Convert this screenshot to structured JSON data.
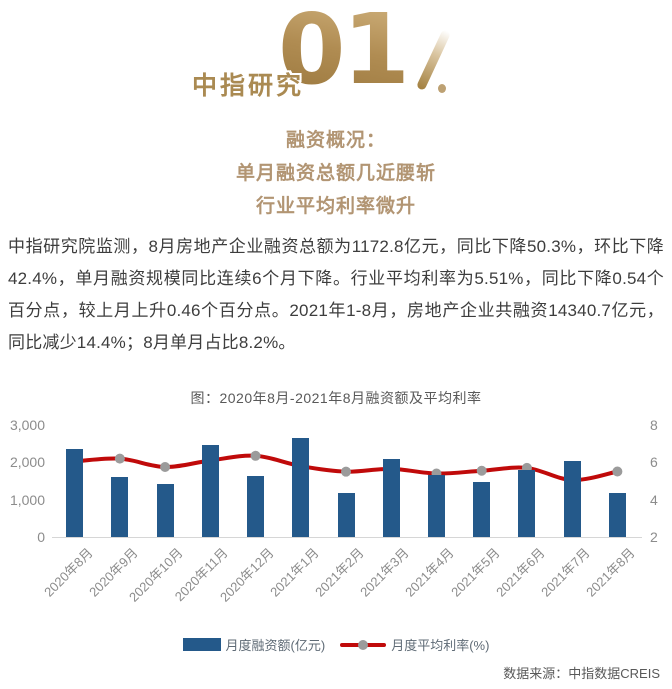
{
  "header": {
    "brand": "中指研究",
    "section_number": "01"
  },
  "subtitle": {
    "lines": [
      "融资概况：",
      "单月融资总额几近腰斩",
      "行业平均利率微升"
    ]
  },
  "body": {
    "paragraph": "中指研究院监测，8月房地产企业融资总额为1172.8亿元，同比下降50.3%，环比下降42.4%，单月融资规模同比连续6个月下降。行业平均利率为5.51%，同比下降0.54个百分点，较上月上升0.46个百分点。2021年1-8月，房地产企业共融资14340.7亿元，同比减少14.4%；8月单月占比8.2%。"
  },
  "chart_data": {
    "type": "bar+line",
    "title": "图：2020年8月-2021年8月融资额及平均利率",
    "categories": [
      "2020年8月",
      "2020年9月",
      "2020年10月",
      "2020年11月",
      "2020年12月",
      "2021年1月",
      "2021年2月",
      "2021年3月",
      "2021年4月",
      "2021年5月",
      "2021年6月",
      "2021年7月",
      "2021年8月"
    ],
    "series": [
      {
        "name": "月度融资额(亿元)",
        "type": "bar",
        "axis": "left",
        "color": "#24598a",
        "values": [
          2360,
          1600,
          1420,
          2460,
          1630,
          2660,
          1180,
          2100,
          1670,
          1480,
          1790,
          2036,
          1172.8
        ]
      },
      {
        "name": "月度平均利率(%)",
        "type": "line",
        "axis": "right",
        "color": "#c00a0a",
        "marker_color": "#9b9b9b",
        "values": [
          6.05,
          6.2,
          5.75,
          6.1,
          6.35,
          5.8,
          5.5,
          5.65,
          5.4,
          5.55,
          5.7,
          5.05,
          5.51
        ]
      }
    ],
    "left_axis": {
      "min": 0,
      "max": 3000,
      "ticks": [
        "3,000",
        "2,000",
        "1,000",
        "0"
      ]
    },
    "right_axis": {
      "min": 2,
      "max": 8,
      "ticks": [
        "8",
        "6",
        "4",
        "2"
      ]
    },
    "grid": false,
    "legend_position": "bottom"
  },
  "footer": {
    "source": "数据来源：中指数据CREIS"
  },
  "colors": {
    "brand_gold": "#aa8a52",
    "subtitle_gold": "#b29573",
    "bar_blue": "#24598a",
    "line_red": "#c00a0a",
    "marker_gray": "#9b9b9b",
    "axis_gray": "#8c8c8c",
    "text_dark": "#3d3d3d"
  }
}
